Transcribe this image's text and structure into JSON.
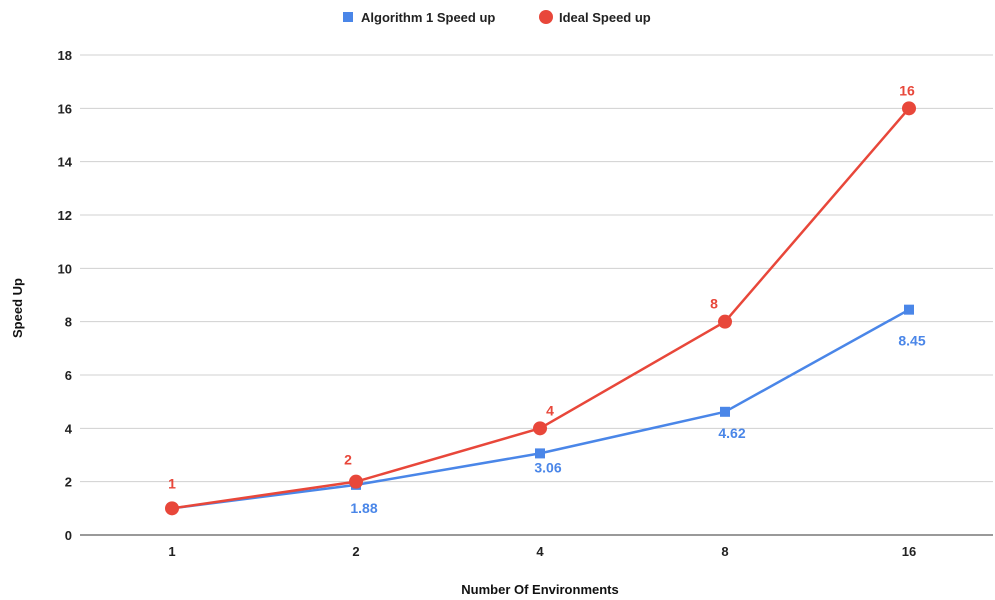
{
  "chart_data": {
    "type": "line",
    "categories": [
      "1",
      "2",
      "4",
      "8",
      "16"
    ],
    "series": [
      {
        "name": "Algorithm 1 Speed up",
        "values": [
          1,
          1.88,
          3.06,
          4.62,
          8.45
        ],
        "labels": [
          "",
          "1.88",
          "3.06",
          "4.62",
          "8.45"
        ],
        "color": "#4a86e8",
        "marker": "square"
      },
      {
        "name": "Ideal Speed up",
        "values": [
          1,
          2,
          4,
          8,
          16
        ],
        "labels": [
          "1",
          "2",
          "4",
          "8",
          "16"
        ],
        "color": "#e8473a",
        "marker": "circle"
      }
    ],
    "xlabel": "Number Of Environments",
    "ylabel": "Speed Up",
    "ylim": [
      0,
      18
    ],
    "yticks": [
      0,
      2,
      4,
      6,
      8,
      10,
      12,
      14,
      16,
      18
    ],
    "grid": true,
    "legend": "top-center"
  }
}
